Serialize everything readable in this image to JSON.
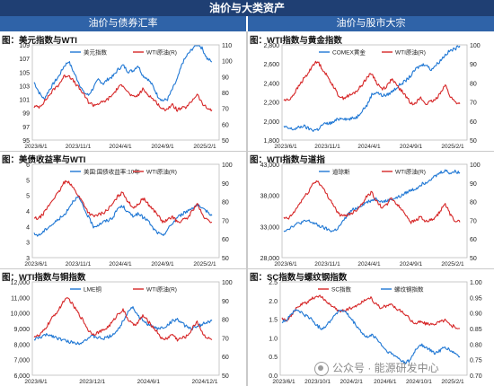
{
  "header": {
    "title": "油价与大类资产",
    "left_section": "油价与债券汇率",
    "right_section": "油价与股市大宗"
  },
  "colors": {
    "blue": "#1f77d4",
    "red": "#d62728",
    "banner": "#1f3f73",
    "subheader": "#2f63a8"
  },
  "watermark": {
    "text": "公众号 · 能源研发中心"
  },
  "chart_data": [
    {
      "id": "usd",
      "type": "line",
      "title": "图：美元指数与WTI",
      "x_ticks": [
        "2023/6/1",
        "2023/11/1",
        "2024/4/1",
        "2024/9/1",
        "2025/2/1"
      ],
      "y_left": {
        "ticks": [
          "95",
          "97",
          "99",
          "101",
          "103",
          "105",
          "107",
          "109"
        ],
        "min": 95,
        "max": 109
      },
      "y_right": {
        "ticks": [
          "50",
          "60",
          "70",
          "80",
          "90",
          "100",
          "110"
        ],
        "min": 50,
        "max": 110
      },
      "legend_position": "top-center",
      "series": [
        {
          "name": "美元指数",
          "color": "#1f77d4",
          "axis": "left",
          "values": [
            103.5,
            102.0,
            101.0,
            102.3,
            103.4,
            104.4,
            105.8,
            106.6,
            105.0,
            103.5,
            102.0,
            101.6,
            102.7,
            103.9,
            103.3,
            104.0,
            104.4,
            105.4,
            106.0,
            105.1,
            105.2,
            106.0,
            104.5,
            104.0,
            103.0,
            101.5,
            100.8,
            101.0,
            102.5,
            104.0,
            106.3,
            107.5,
            108.4,
            109.3,
            108.5,
            107.0,
            106.5
          ]
        },
        {
          "name": "WTI原油(R)",
          "color": "#d62728",
          "axis": "right",
          "values": [
            71,
            71,
            74,
            78,
            82,
            85,
            90,
            91,
            87,
            83,
            79,
            74,
            72,
            73,
            74,
            76,
            79,
            83,
            85,
            80,
            77,
            78,
            82,
            79,
            76,
            73,
            69,
            70,
            72,
            69,
            70,
            71,
            75,
            79,
            73,
            70,
            69
          ]
        }
      ]
    },
    {
      "id": "gold",
      "type": "line",
      "title": "图：WTI指数与黄金指数",
      "x_ticks": [
        "2023/6/1",
        "2023/11/1",
        "2024/4/1",
        "2024/9/1",
        "2025/2/1"
      ],
      "y_left": {
        "ticks": [
          "1,800",
          "2,000",
          "2,200",
          "2,400",
          "2,600",
          "2,800"
        ],
        "min": 1800,
        "max": 2950
      },
      "y_right": {
        "ticks": [
          "50",
          "60",
          "70",
          "80",
          "90",
          "100"
        ],
        "min": 50,
        "max": 100
      },
      "legend_position": "top-center",
      "series": [
        {
          "name": "COMEX黄金",
          "color": "#1f77d4",
          "axis": "left",
          "values": [
            1960,
            1940,
            1930,
            1950,
            1970,
            1940,
            1920,
            1930,
            1990,
            2000,
            2010,
            2050,
            2070,
            2050,
            2060,
            2080,
            2160,
            2220,
            2350,
            2380,
            2340,
            2340,
            2380,
            2430,
            2480,
            2520,
            2580,
            2660,
            2700,
            2720,
            2650,
            2700,
            2760,
            2830,
            2880,
            2900,
            2950
          ]
        },
        {
          "name": "WTI原油(R)",
          "color": "#d62728",
          "axis": "right",
          "values": [
            71,
            71,
            74,
            78,
            82,
            85,
            90,
            91,
            87,
            83,
            79,
            74,
            72,
            73,
            74,
            76,
            79,
            83,
            85,
            80,
            77,
            78,
            82,
            79,
            76,
            73,
            69,
            70,
            72,
            69,
            70,
            71,
            75,
            79,
            73,
            70,
            69
          ]
        }
      ]
    },
    {
      "id": "ust",
      "type": "line",
      "title": "图：美债收益率与WTI",
      "x_ticks": [
        "2023/6/1",
        "2023/11/1",
        "2024/4/1",
        "2024/9/1",
        "2025/2/1"
      ],
      "y_left": {
        "ticks": [
          "3",
          "3",
          "4",
          "4",
          "5",
          "5",
          "6"
        ],
        "min": 3.0,
        "max": 6.0
      },
      "y_right": {
        "ticks": [
          "50",
          "60",
          "70",
          "80",
          "90",
          "100"
        ],
        "min": 50,
        "max": 100
      },
      "legend_position": "top-center",
      "series": [
        {
          "name": "美国:国债收益率:10年",
          "color": "#1f77d4",
          "axis": "left",
          "values": [
            3.75,
            3.72,
            3.85,
            4.0,
            4.1,
            4.25,
            4.35,
            4.6,
            4.85,
            4.95,
            4.6,
            4.3,
            4.0,
            4.05,
            4.15,
            4.2,
            4.3,
            4.6,
            4.65,
            4.45,
            4.35,
            4.4,
            4.3,
            4.2,
            3.95,
            3.8,
            3.7,
            3.9,
            4.1,
            4.3,
            4.4,
            4.5,
            4.6,
            4.7,
            4.55,
            4.5,
            4.35
          ]
        },
        {
          "name": "WTI原油(R)",
          "color": "#d62728",
          "axis": "right",
          "values": [
            71,
            71,
            74,
            78,
            82,
            85,
            90,
            91,
            87,
            83,
            79,
            74,
            72,
            73,
            74,
            76,
            79,
            83,
            85,
            80,
            77,
            78,
            82,
            79,
            76,
            73,
            69,
            70,
            72,
            69,
            70,
            71,
            75,
            79,
            73,
            70,
            69
          ]
        }
      ]
    },
    {
      "id": "dji",
      "type": "line",
      "title": "图：WTI指数与道指",
      "x_ticks": [
        "2023/6/1",
        "2023/11/1",
        "2024/4/1",
        "2024/9/1",
        "2025/2/1"
      ],
      "y_left": {
        "ticks": [
          "28,000",
          "33,000",
          "38,000",
          "43,000"
        ],
        "min": 28000,
        "max": 46000
      },
      "y_right": {
        "ticks": [
          "50",
          "60",
          "70",
          "80",
          "90",
          "100"
        ],
        "min": 50,
        "max": 100
      },
      "legend_position": "top-center",
      "series": [
        {
          "name": "道琼斯",
          "color": "#1f77d4",
          "axis": "left",
          "values": [
            33200,
            33600,
            34200,
            34600,
            34900,
            35100,
            34700,
            34200,
            33800,
            33400,
            33100,
            33600,
            34800,
            36200,
            37200,
            37600,
            38200,
            38700,
            39100,
            39400,
            38800,
            38900,
            39300,
            39500,
            39900,
            40500,
            41000,
            41300,
            42100,
            42500,
            43200,
            43700,
            44400,
            44800,
            44300,
            44600,
            44400
          ]
        },
        {
          "name": "WTI原油(R)",
          "color": "#d62728",
          "axis": "right",
          "values": [
            71,
            71,
            74,
            78,
            82,
            85,
            90,
            91,
            87,
            83,
            79,
            74,
            72,
            73,
            74,
            76,
            79,
            83,
            85,
            80,
            77,
            78,
            82,
            79,
            76,
            73,
            69,
            70,
            72,
            69,
            70,
            71,
            75,
            79,
            73,
            70,
            69
          ]
        }
      ]
    },
    {
      "id": "copper",
      "type": "line",
      "title": "图：WTI指数与铜指数",
      "x_ticks": [
        "2023/6/1",
        "2023/12/1",
        "2024/6/1",
        "2024/12/1"
      ],
      "y_left": {
        "ticks": [
          "6,000",
          "7,000",
          "8,000",
          "9,000",
          "10,000",
          "11,000",
          "12,000"
        ],
        "min": 6000,
        "max": 12000
      },
      "y_right": {
        "ticks": [
          "50",
          "60",
          "70",
          "80",
          "90",
          "100"
        ],
        "min": 50,
        "max": 100
      },
      "legend_position": "top-center",
      "series": [
        {
          "name": "LME铜",
          "color": "#1f77d4",
          "axis": "left",
          "values": [
            8300,
            8400,
            8550,
            8600,
            8500,
            8350,
            8250,
            8150,
            8100,
            8050,
            8200,
            8400,
            8500,
            8400,
            8350,
            8450,
            8650,
            8900,
            9500,
            10100,
            10400,
            9800,
            9500,
            9300,
            9100,
            9000,
            9050,
            9200,
            9500,
            9600,
            9300,
            9100,
            9000,
            9100,
            9300,
            9400,
            9500
          ]
        },
        {
          "name": "WTI原油(R)",
          "color": "#d62728",
          "axis": "right",
          "values": [
            71,
            71,
            74,
            78,
            82,
            85,
            90,
            91,
            87,
            83,
            79,
            74,
            72,
            73,
            74,
            76,
            79,
            83,
            85,
            80,
            77,
            78,
            82,
            79,
            76,
            73,
            69,
            70,
            72,
            69,
            70,
            71,
            75,
            79,
            73,
            70,
            69
          ]
        }
      ]
    },
    {
      "id": "rebar",
      "type": "line",
      "title": "图：SC指数与螺纹钢指数",
      "x_ticks": [
        "2023/6/1",
        "2023/10/1",
        "2024/2/1",
        "2024/6/1",
        "2024/10/1",
        "2025/2/1"
      ],
      "y_left": {
        "ticks": [
          "0.0",
          "0.5",
          "1.0",
          "1.5",
          "2.0",
          "2.5"
        ],
        "min": 0.0,
        "max": 2.7
      },
      "y_right": {
        "ticks": [
          "0.70",
          "0.75",
          "0.80",
          "0.85",
          "0.90",
          "0.95",
          "1.00"
        ],
        "min": 0.7,
        "max": 1.0
      },
      "legend_position": "top-center",
      "series": [
        {
          "name": "SC指数",
          "color": "#d62728",
          "axis": "left",
          "values": [
            1.65,
            1.6,
            1.75,
            1.95,
            2.05,
            2.1,
            2.2,
            2.3,
            2.25,
            2.15,
            2.0,
            1.9,
            1.85,
            1.9,
            1.95,
            2.0,
            2.1,
            2.2,
            2.25,
            2.05,
            1.95,
            2.0,
            2.05,
            1.95,
            1.85,
            1.75,
            1.6,
            1.5,
            1.55,
            1.5,
            1.45,
            1.5,
            1.55,
            1.6,
            1.45,
            1.4,
            1.35
          ]
        },
        {
          "name": "螺纹钢指数",
          "color": "#1f77d4",
          "axis": "right",
          "values": [
            0.87,
            0.88,
            0.9,
            0.91,
            0.9,
            0.89,
            0.88,
            0.86,
            0.85,
            0.86,
            0.88,
            0.9,
            0.91,
            0.9,
            0.88,
            0.86,
            0.84,
            0.82,
            0.83,
            0.82,
            0.8,
            0.78,
            0.77,
            0.76,
            0.75,
            0.74,
            0.75,
            0.78,
            0.8,
            0.79,
            0.78,
            0.77,
            0.78,
            0.79,
            0.78,
            0.77,
            0.76
          ]
        }
      ]
    }
  ]
}
